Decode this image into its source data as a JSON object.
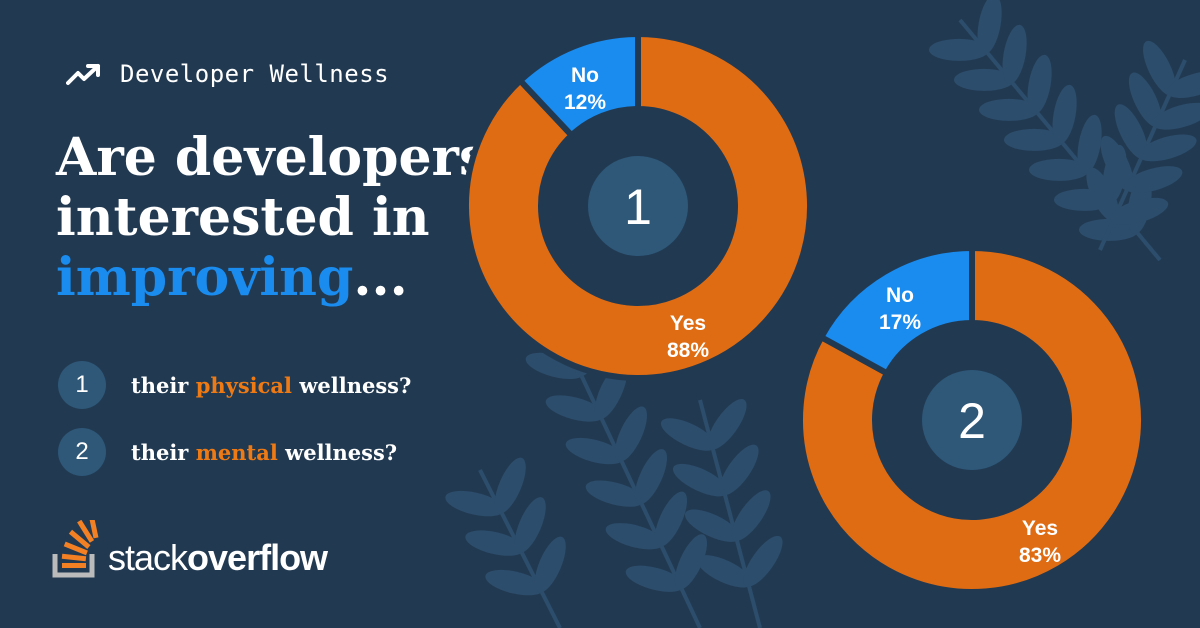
{
  "topic": {
    "label": "Developer Wellness",
    "icon": "trending-up-icon"
  },
  "headline": {
    "line1": "Are developers",
    "line2": "interested in",
    "line3_accent": "improving",
    "line3_suffix": "..."
  },
  "questions": [
    {
      "number": "1",
      "prefix": "their ",
      "highlight": "physical",
      "suffix": " wellness?"
    },
    {
      "number": "2",
      "prefix": "their ",
      "highlight": "mental",
      "suffix": " wellness?"
    }
  ],
  "brand": {
    "logo": "stack-overflow-logo-icon",
    "word_light": "stack",
    "word_bold": "overflow"
  },
  "colors": {
    "background": "#213a52",
    "accent_blue": "#1a8cf0",
    "accent_orange": "#df6c13",
    "highlight_text": "#ef7a14",
    "badge": "#2e5778",
    "leaf": "#2d4d6c"
  },
  "chart_data": [
    {
      "type": "pie",
      "variant": "donut",
      "center_label": "1",
      "slices": [
        {
          "label": "Yes",
          "value": 88,
          "display": "88%",
          "color": "#df6c13"
        },
        {
          "label": "No",
          "value": 12,
          "display": "12%",
          "color": "#1a8cf0"
        }
      ]
    },
    {
      "type": "pie",
      "variant": "donut",
      "center_label": "2",
      "slices": [
        {
          "label": "Yes",
          "value": 83,
          "display": "83%",
          "color": "#df6c13"
        },
        {
          "label": "No",
          "value": 17,
          "display": "17%",
          "color": "#1a8cf0"
        }
      ]
    }
  ]
}
